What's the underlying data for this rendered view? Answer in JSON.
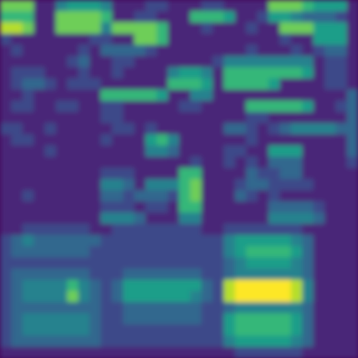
{
  "chart_data": {
    "type": "heatmap",
    "color": "viridis",
    "tick_labels": false,
    "value_range": [
      0,
      9
    ],
    "cells": [
      [
        7,
        7,
        7,
        1,
        1,
        4,
        5,
        5,
        5,
        4,
        1,
        1,
        1,
        2,
        2,
        1,
        1,
        1,
        2,
        2,
        1,
        1,
        1,
        1,
        7,
        7,
        7,
        6,
        5,
        5,
        5,
        1
      ],
      [
        6,
        6,
        6,
        1,
        1,
        7,
        7,
        7,
        7,
        6,
        1,
        1,
        2,
        2,
        1,
        1,
        1,
        6,
        6,
        6,
        5,
        1,
        1,
        2,
        5,
        5,
        4,
        3,
        3,
        3,
        2,
        1
      ],
      [
        8,
        8,
        7,
        1,
        1,
        7,
        7,
        7,
        7,
        4,
        7,
        7,
        7,
        7,
        6,
        1,
        1,
        1,
        2,
        1,
        1,
        1,
        2,
        1,
        1,
        7,
        7,
        7,
        5,
        5,
        5,
        1
      ],
      [
        2,
        1,
        1,
        1,
        1,
        1,
        1,
        1,
        2,
        2,
        1,
        1,
        7,
        7,
        6,
        1,
        1,
        1,
        1,
        1,
        1,
        1,
        1,
        1,
        1,
        2,
        1,
        1,
        5,
        5,
        5,
        1
      ],
      [
        1,
        2,
        1,
        1,
        1,
        1,
        1,
        2,
        1,
        3,
        3,
        3,
        3,
        2,
        1,
        1,
        1,
        1,
        1,
        1,
        1,
        1,
        2,
        1,
        1,
        1,
        2,
        1,
        2,
        3,
        3,
        1
      ],
      [
        1,
        1,
        1,
        1,
        1,
        1,
        2,
        3,
        1,
        1,
        2,
        2,
        1,
        1,
        1,
        1,
        1,
        1,
        1,
        2,
        4,
        4,
        4,
        4,
        4,
        4,
        4,
        4,
        1,
        2,
        2,
        1
      ],
      [
        1,
        2,
        2,
        2,
        1,
        1,
        1,
        2,
        1,
        1,
        2,
        1,
        1,
        1,
        1,
        4,
        5,
        5,
        4,
        1,
        6,
        6,
        6,
        6,
        6,
        6,
        6,
        5,
        1,
        2,
        2,
        1
      ],
      [
        1,
        2,
        3,
        3,
        2,
        1,
        2,
        2,
        2,
        1,
        1,
        1,
        1,
        1,
        1,
        6,
        6,
        6,
        5,
        1,
        6,
        6,
        6,
        6,
        5,
        1,
        1,
        1,
        1,
        2,
        2,
        1
      ],
      [
        1,
        1,
        2,
        1,
        1,
        1,
        1,
        1,
        1,
        6,
        6,
        6,
        6,
        6,
        5,
        1,
        1,
        4,
        4,
        1,
        1,
        1,
        1,
        1,
        1,
        1,
        1,
        1,
        1,
        1,
        1,
        3
      ],
      [
        1,
        2,
        2,
        1,
        1,
        2,
        2,
        1,
        1,
        2,
        2,
        1,
        1,
        1,
        1,
        1,
        2,
        2,
        1,
        1,
        1,
        1,
        6,
        6,
        6,
        6,
        6,
        5,
        1,
        1,
        2,
        3
      ],
      [
        1,
        1,
        1,
        1,
        1,
        1,
        1,
        1,
        1,
        2,
        2,
        1,
        1,
        1,
        1,
        1,
        1,
        1,
        1,
        1,
        1,
        1,
        2,
        2,
        1,
        1,
        1,
        1,
        1,
        1,
        1,
        3
      ],
      [
        2,
        2,
        1,
        1,
        2,
        1,
        1,
        1,
        1,
        1,
        2,
        2,
        1,
        2,
        1,
        1,
        1,
        1,
        1,
        1,
        3,
        3,
        2,
        1,
        2,
        3,
        4,
        4,
        4,
        4,
        3,
        3
      ],
      [
        1,
        2,
        2,
        1,
        1,
        1,
        1,
        1,
        1,
        2,
        1,
        1,
        1,
        5,
        6,
        4,
        1,
        1,
        1,
        1,
        1,
        1,
        2,
        1,
        1,
        1,
        1,
        1,
        1,
        1,
        1,
        3
      ],
      [
        1,
        1,
        1,
        1,
        2,
        1,
        1,
        1,
        1,
        1,
        1,
        1,
        1,
        4,
        4,
        3,
        1,
        1,
        1,
        1,
        2,
        2,
        1,
        1,
        5,
        5,
        5,
        1,
        1,
        1,
        1,
        3
      ],
      [
        1,
        1,
        1,
        1,
        1,
        1,
        1,
        1,
        1,
        1,
        1,
        1,
        1,
        1,
        1,
        1,
        1,
        2,
        1,
        1,
        2,
        1,
        2,
        1,
        3,
        3,
        3,
        1,
        1,
        1,
        1,
        2
      ],
      [
        1,
        1,
        1,
        1,
        1,
        1,
        1,
        1,
        1,
        2,
        2,
        2,
        1,
        1,
        1,
        1,
        6,
        6,
        1,
        1,
        1,
        1,
        3,
        2,
        2,
        3,
        3,
        1,
        1,
        1,
        1,
        1
      ],
      [
        1,
        1,
        1,
        1,
        1,
        1,
        1,
        1,
        1,
        4,
        4,
        3,
        1,
        4,
        4,
        4,
        6,
        7,
        1,
        1,
        1,
        2,
        3,
        3,
        2,
        2,
        2,
        2,
        1,
        1,
        1,
        1
      ],
      [
        1,
        1,
        2,
        1,
        1,
        1,
        1,
        1,
        1,
        3,
        3,
        2,
        3,
        3,
        3,
        2,
        6,
        7,
        1,
        1,
        1,
        3,
        2,
        1,
        2,
        1,
        1,
        1,
        1,
        1,
        1,
        1
      ],
      [
        1,
        1,
        1,
        1,
        1,
        1,
        1,
        1,
        1,
        2,
        2,
        2,
        1,
        2,
        2,
        1,
        6,
        6,
        1,
        1,
        1,
        1,
        1,
        1,
        3,
        3,
        3,
        3,
        2,
        1,
        1,
        1
      ],
      [
        1,
        1,
        1,
        1,
        1,
        1,
        1,
        1,
        1,
        4,
        4,
        4,
        3,
        1,
        1,
        1,
        4,
        4,
        1,
        1,
        1,
        1,
        1,
        1,
        4,
        4,
        4,
        4,
        3,
        1,
        1,
        1
      ],
      [
        1,
        1,
        2,
        2,
        2,
        2,
        2,
        2,
        1,
        1,
        2,
        2,
        2,
        2,
        2,
        2,
        2,
        2,
        1,
        1,
        2,
        2,
        2,
        2,
        2,
        2,
        2,
        1,
        1,
        1,
        1,
        1
      ],
      [
        2,
        3,
        4,
        3,
        3,
        3,
        3,
        3,
        3,
        2,
        2,
        2,
        2,
        2,
        2,
        2,
        2,
        2,
        2,
        2,
        4,
        5,
        5,
        5,
        5,
        5,
        4,
        3,
        1,
        1,
        1,
        1
      ],
      [
        2,
        3,
        3,
        3,
        3,
        3,
        3,
        3,
        2,
        2,
        2,
        2,
        2,
        2,
        2,
        2,
        2,
        2,
        2,
        2,
        4,
        5,
        6,
        6,
        6,
        6,
        5,
        3,
        1,
        1,
        1,
        1
      ],
      [
        2,
        2,
        2,
        2,
        2,
        2,
        2,
        2,
        2,
        2,
        2,
        2,
        2,
        2,
        2,
        2,
        2,
        2,
        2,
        2,
        3,
        4,
        5,
        5,
        5,
        5,
        4,
        3,
        1,
        1,
        1,
        1
      ],
      [
        2,
        3,
        3,
        3,
        3,
        3,
        3,
        3,
        2,
        2,
        2,
        3,
        3,
        3,
        3,
        3,
        3,
        3,
        2,
        2,
        3,
        4,
        4,
        4,
        4,
        4,
        4,
        3,
        1,
        1,
        1,
        1
      ],
      [
        2,
        3,
        4,
        4,
        4,
        4,
        6,
        4,
        3,
        2,
        3,
        5,
        5,
        5,
        5,
        5,
        5,
        5,
        3,
        2,
        8,
        9,
        9,
        9,
        9,
        9,
        8,
        4,
        1,
        1,
        1,
        1
      ],
      [
        2,
        3,
        4,
        4,
        4,
        4,
        7,
        4,
        3,
        2,
        3,
        5,
        5,
        5,
        5,
        5,
        5,
        4,
        3,
        2,
        8,
        9,
        9,
        9,
        9,
        9,
        8,
        4,
        1,
        1,
        1,
        1
      ],
      [
        2,
        3,
        3,
        3,
        3,
        3,
        3,
        3,
        3,
        2,
        2,
        3,
        3,
        3,
        3,
        3,
        3,
        3,
        2,
        2,
        3,
        4,
        4,
        4,
        4,
        4,
        4,
        3,
        1,
        1,
        1,
        1
      ],
      [
        2,
        3,
        4,
        4,
        4,
        4,
        4,
        4,
        3,
        2,
        2,
        3,
        3,
        3,
        3,
        3,
        3,
        3,
        2,
        2,
        5,
        6,
        6,
        6,
        6,
        6,
        5,
        3,
        1,
        1,
        1,
        1
      ],
      [
        2,
        3,
        4,
        4,
        4,
        4,
        4,
        4,
        3,
        2,
        2,
        2,
        2,
        2,
        2,
        2,
        2,
        2,
        2,
        2,
        5,
        6,
        6,
        6,
        6,
        6,
        5,
        3,
        1,
        1,
        1,
        1
      ],
      [
        2,
        3,
        3,
        3,
        3,
        3,
        3,
        3,
        3,
        2,
        2,
        2,
        2,
        2,
        2,
        2,
        2,
        2,
        2,
        2,
        4,
        5,
        5,
        5,
        5,
        5,
        4,
        3,
        1,
        1,
        1,
        1
      ],
      [
        1,
        1,
        1,
        1,
        1,
        1,
        1,
        1,
        1,
        1,
        1,
        1,
        1,
        1,
        1,
        1,
        1,
        1,
        1,
        1,
        1,
        2,
        2,
        2,
        2,
        2,
        2,
        1,
        1,
        1,
        1,
        1
      ]
    ]
  }
}
